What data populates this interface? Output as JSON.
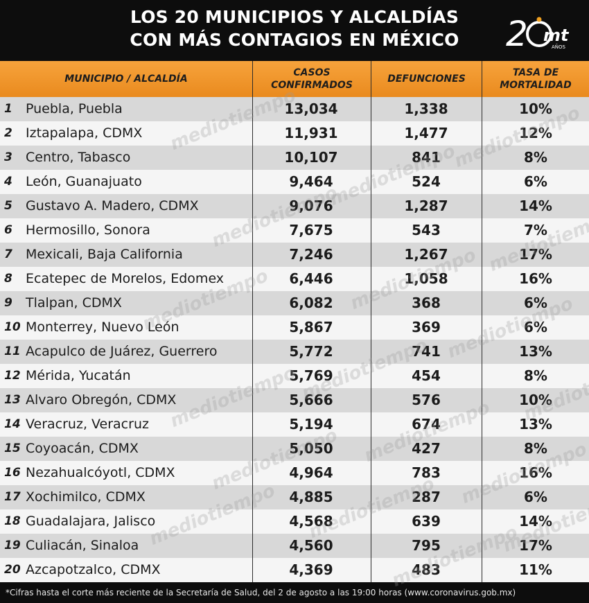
{
  "header": {
    "title_line1": "LOS 20 MUNICIPIOS Y ALCALDÍAS",
    "title_line2": "CON MÁS CONTAGIOS EN MÉXICO",
    "logo_text": "mt",
    "logo_sub": "AÑOS",
    "logo_accent": "#f0a020"
  },
  "watermark": "mediotiempo",
  "chart_data": {
    "type": "table",
    "columns": [
      "MUNICIPIO / ALCALDÍA",
      "CASOS CONFIRMADOS",
      "DEFUNCIONES",
      "TASA DE MORTALIDAD"
    ],
    "rows": [
      {
        "rank": "1",
        "name": "Puebla, Puebla",
        "casos": "13,034",
        "defunciones": "1,338",
        "tasa": "10%"
      },
      {
        "rank": "2",
        "name": "Iztapalapa, CDMX",
        "casos": "11,931",
        "defunciones": "1,477",
        "tasa": "12%"
      },
      {
        "rank": "3",
        "name": "Centro, Tabasco",
        "casos": "10,107",
        "defunciones": "841",
        "tasa": "8%"
      },
      {
        "rank": "4",
        "name": "León, Guanajuato",
        "casos": "9,464",
        "defunciones": "524",
        "tasa": "6%"
      },
      {
        "rank": "5",
        "name": "Gustavo A. Madero, CDMX",
        "casos": "9,076",
        "defunciones": "1,287",
        "tasa": "14%"
      },
      {
        "rank": "6",
        "name": "Hermosillo, Sonora",
        "casos": "7,675",
        "defunciones": "543",
        "tasa": "7%"
      },
      {
        "rank": "7",
        "name": "Mexicali, Baja California",
        "casos": "7,246",
        "defunciones": "1,267",
        "tasa": "17%"
      },
      {
        "rank": "8",
        "name": "Ecatepec de Morelos, Edomex",
        "casos": "6,446",
        "defunciones": "1,058",
        "tasa": "16%"
      },
      {
        "rank": "9",
        "name": "Tlalpan, CDMX",
        "casos": "6,082",
        "defunciones": "368",
        "tasa": "6%"
      },
      {
        "rank": "10",
        "name": "Monterrey, Nuevo León",
        "casos": "5,867",
        "defunciones": "369",
        "tasa": "6%"
      },
      {
        "rank": "11",
        "name": "Acapulco de Juárez, Guerrero",
        "casos": "5,772",
        "defunciones": "741",
        "tasa": "13%"
      },
      {
        "rank": "12",
        "name": "Mérida, Yucatán",
        "casos": "5,769",
        "defunciones": "454",
        "tasa": "8%"
      },
      {
        "rank": "13",
        "name": "Alvaro Obregón, CDMX",
        "casos": "5,666",
        "defunciones": "576",
        "tasa": "10%"
      },
      {
        "rank": "14",
        "name": "Veracruz, Veracruz",
        "casos": "5,194",
        "defunciones": "674",
        "tasa": "13%"
      },
      {
        "rank": "15",
        "name": "Coyoacán, CDMX",
        "casos": "5,050",
        "defunciones": "427",
        "tasa": "8%"
      },
      {
        "rank": "16",
        "name": "Nezahualcóyotl, CDMX",
        "casos": "4,964",
        "defunciones": "783",
        "tasa": "16%"
      },
      {
        "rank": "17",
        "name": "Xochimilco, CDMX",
        "casos": "4,885",
        "defunciones": "287",
        "tasa": "6%"
      },
      {
        "rank": "18",
        "name": "Guadalajara, Jalisco",
        "casos": "4,568",
        "defunciones": "639",
        "tasa": "14%"
      },
      {
        "rank": "19",
        "name": "Culiacán, Sinaloa",
        "casos": "4,560",
        "defunciones": "795",
        "tasa": "17%"
      },
      {
        "rank": "20",
        "name": "Azcapotzalco, CDMX",
        "casos": "4,369",
        "defunciones": "483",
        "tasa": "11%"
      }
    ]
  },
  "footnote": "*Cifras hasta el corte más reciente de la Secretaría de Salud, del 2 de agosto a las 19:00 horas (www.coronavirus.gob.mx)",
  "colors": {
    "header_bg": "#0d0d0d",
    "column_header_bg": "#f29a2e",
    "row_dark": "#d8d8d8",
    "row_light": "#f5f5f5"
  }
}
